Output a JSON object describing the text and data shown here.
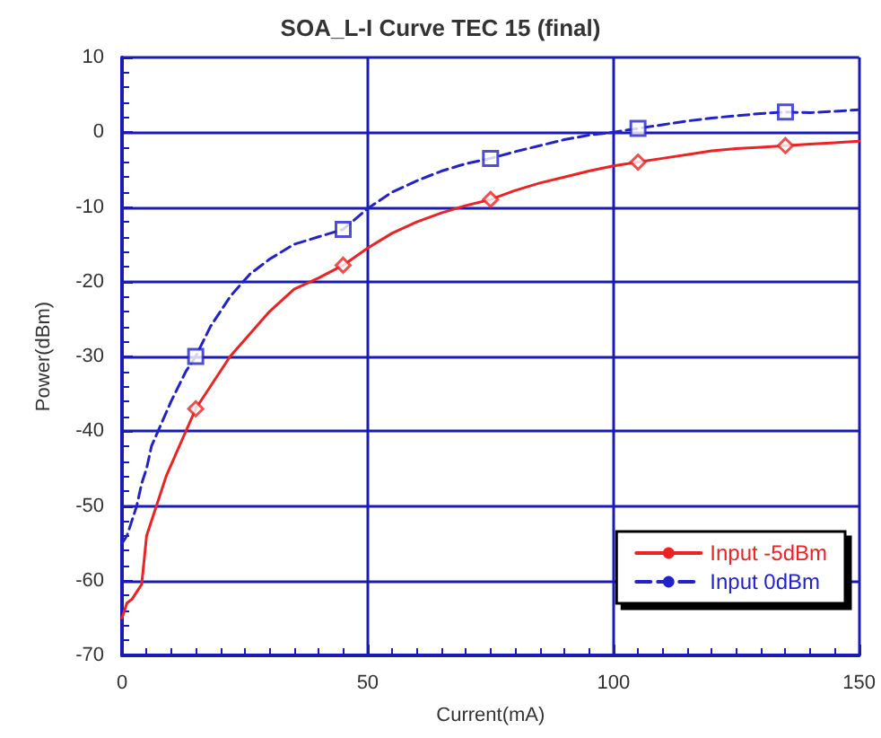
{
  "chart_data": {
    "type": "line",
    "title": "SOA_L-I Curve TEC 15 (final)",
    "xlabel": "Current(mA)",
    "ylabel": "Power(dBm)",
    "xlim": [
      0,
      150
    ],
    "xticks": [
      0,
      50,
      100,
      150
    ],
    "ylim": [
      -70,
      10
    ],
    "yticks": [
      -70,
      -60,
      -50,
      -40,
      -30,
      -20,
      -10,
      0,
      10
    ],
    "grid": true,
    "legend": "bottom right",
    "series": [
      {
        "name": "Input -5dBm",
        "color": "#ee2222",
        "marker": "none",
        "line_style": "solid",
        "x": [
          0,
          1,
          2,
          4,
          5,
          7,
          9,
          11,
          13,
          15,
          18,
          22,
          26,
          30,
          35,
          40,
          45,
          50,
          55,
          60,
          65,
          70,
          75,
          80,
          85,
          90,
          95,
          100,
          105,
          110,
          115,
          120,
          125,
          130,
          135,
          140,
          145,
          150
        ],
        "values": [
          -65,
          -63,
          -62.5,
          -60.5,
          -54,
          -50,
          -46,
          -43,
          -40,
          -37,
          -34,
          -30,
          -27,
          -24,
          -21,
          -19.5,
          -17.8,
          -15.5,
          -13.5,
          -12,
          -10.8,
          -9.8,
          -9,
          -7.8,
          -6.8,
          -6,
          -5.2,
          -4.5,
          -4,
          -3.5,
          -3,
          -2.5,
          -2.2,
          -2,
          -1.8,
          -1.6,
          -1.4,
          -1.2
        ]
      },
      {
        "name": "Input 0dBm",
        "color": "#2222cc",
        "marker": "none",
        "line_style": "dashed",
        "x": [
          0,
          1,
          2,
          3,
          4,
          5,
          6,
          8,
          10,
          13,
          15,
          18,
          22,
          26,
          30,
          35,
          40,
          45,
          50,
          55,
          60,
          65,
          70,
          75,
          80,
          85,
          90,
          95,
          100,
          105,
          110,
          115,
          120,
          125,
          130,
          135,
          140,
          145,
          150
        ],
        "values": [
          -55,
          -54,
          -52,
          -50,
          -47,
          -45,
          -42,
          -39,
          -36,
          -32,
          -30,
          -26,
          -22,
          -19,
          -17,
          -15,
          -14,
          -13,
          -10.2,
          -8,
          -6.5,
          -5.2,
          -4.2,
          -3.5,
          -2.6,
          -1.8,
          -1,
          -0.4,
          0,
          0.5,
          1,
          1.5,
          1.9,
          2.2,
          2.5,
          2.7,
          2.6,
          2.8,
          3
        ]
      },
      {
        "type": "scatter",
        "color": "#ee2222",
        "marker": "diamond",
        "x": [
          15,
          45,
          75,
          105,
          135
        ],
        "values": [
          -37,
          -17.8,
          -9,
          -4,
          -1.8
        ]
      },
      {
        "type": "scatter",
        "color": "#2222cc",
        "marker": "square",
        "x": [
          15,
          45,
          75,
          105,
          135
        ],
        "values": [
          -30,
          -13,
          -3.5,
          0.5,
          2.7
        ]
      }
    ]
  }
}
